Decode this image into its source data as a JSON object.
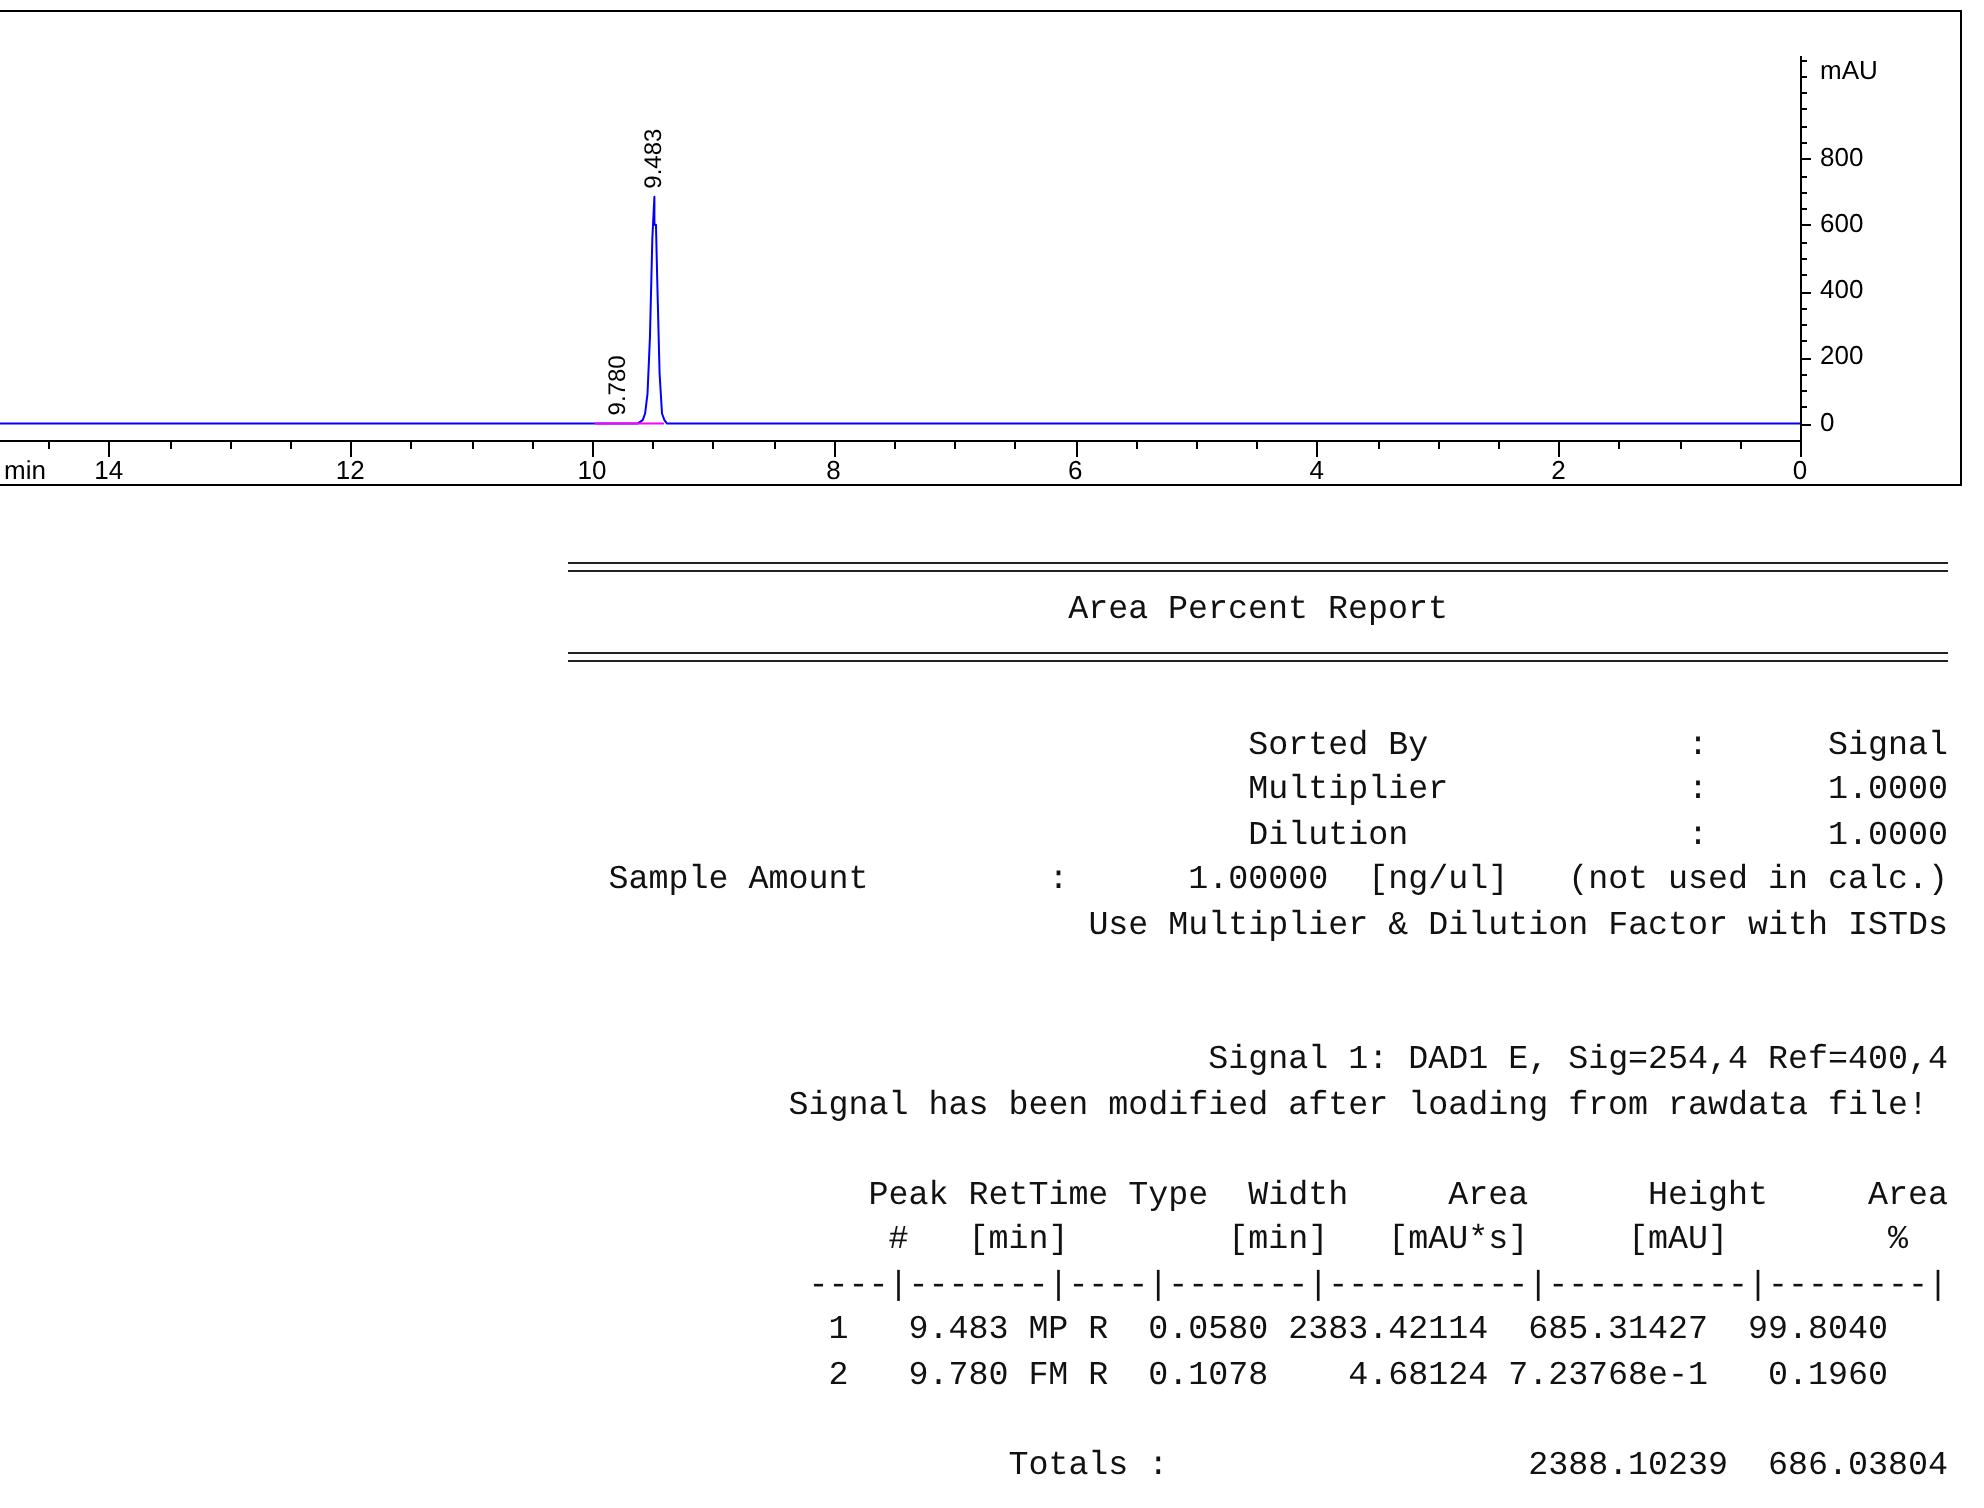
{
  "chart_data": {
    "type": "line",
    "xlabel": "min",
    "ylabel": "mAU",
    "series": [
      {
        "color": "#0000ff",
        "x": [
          0,
          9.38,
          9.4,
          9.42,
          9.44,
          9.46,
          9.47,
          9.483,
          9.5,
          9.52,
          9.54,
          9.56,
          9.58,
          9.62,
          14.9
        ],
        "values": [
          0,
          0,
          10,
          30,
          150,
          440,
          600,
          685,
          560,
          260,
          90,
          30,
          10,
          0,
          0
        ]
      },
      {
        "color": "#ff00ff",
        "x": [
          9.41,
          9.97
        ],
        "values": [
          0,
          0
        ]
      }
    ],
    "marker": "none",
    "xlim": [
      14.9,
      0
    ],
    "xticks": [
      {
        "value": 14.5,
        "label": null
      },
      14,
      {
        "value": 13.5,
        "label": null
      },
      {
        "value": 13,
        "label": null
      },
      {
        "value": 12.5,
        "label": null
      },
      12,
      {
        "value": 11.5,
        "label": null
      },
      {
        "value": 11,
        "label": null
      },
      {
        "value": 10.5,
        "label": null
      },
      10,
      {
        "value": 9.5,
        "label": null
      },
      {
        "value": 9,
        "label": null
      },
      {
        "value": 8.5,
        "label": null
      },
      8,
      {
        "value": 7.5,
        "label": null
      },
      {
        "value": 7,
        "label": null
      },
      {
        "value": 6.5,
        "label": null
      },
      6,
      {
        "value": 5.5,
        "label": null
      },
      {
        "value": 5,
        "label": null
      },
      {
        "value": 4.5,
        "label": null
      },
      4,
      {
        "value": 3.5,
        "label": null
      },
      {
        "value": 3,
        "label": null
      },
      {
        "value": 2.5,
        "label": null
      },
      2,
      {
        "value": 1.5,
        "label": null
      },
      {
        "value": 1,
        "label": null
      },
      {
        "value": 0.5,
        "label": null
      },
      0
    ],
    "ylim": [
      -50,
      1110
    ],
    "yticks": [
      0,
      {
        "value": 50,
        "label": null
      },
      {
        "value": 100,
        "label": null
      },
      {
        "value": 150,
        "label": null
      },
      200,
      {
        "value": 250,
        "label": null
      },
      {
        "value": 300,
        "label": null
      },
      {
        "value": 350,
        "label": null
      },
      400,
      {
        "value": 450,
        "label": null
      },
      {
        "value": 500,
        "label": null
      },
      {
        "value": 550,
        "label": null
      },
      600,
      {
        "value": 650,
        "label": null
      },
      {
        "value": 700,
        "label": null
      },
      {
        "value": 750,
        "label": null
      },
      800,
      {
        "value": 850,
        "label": null
      },
      {
        "value": 900,
        "label": null
      },
      {
        "value": 950,
        "label": null
      },
      {
        "value": 1000,
        "label": null
      },
      {
        "value": 1050,
        "label": null
      },
      {
        "value": 1100,
        "label": null
      }
    ],
    "annotations": [
      {
        "text": "9.483",
        "x": 9.483,
        "y": 685
      },
      {
        "text": "9.780",
        "x": 9.78,
        "y": 0
      },
      "                         Area Percent Report",
      "Sorted By             :      Signal",
      "Multiplier            :      1.0000",
      "Dilution              :      1.0000",
      "Sample Amount         :      1.00000  [ng/ul]   (not used in calc.)",
      "Use Multiplier & Dilution Factor with ISTDs",
      "Signal 1: DAD1 E, Sig=254,4 Ref=400,4",
      " Signal has been modified after loading from rawdata file!",
      "Peak RetTime Type  Width     Area      Height     Area",
      "  #   [min]        [min]   [mAU*s]     [mAU]        %",
      "----|-------|----|-------|----------|----------|--------|",
      "   1   9.483 MP R  0.0580 2383.42114  685.31427  99.8040",
      "   2   9.780 FM R  0.1078    4.68124 7.23768e-1   0.1960",
      "Totals :                  2388.10239  686.03804"
    ]
  }
}
